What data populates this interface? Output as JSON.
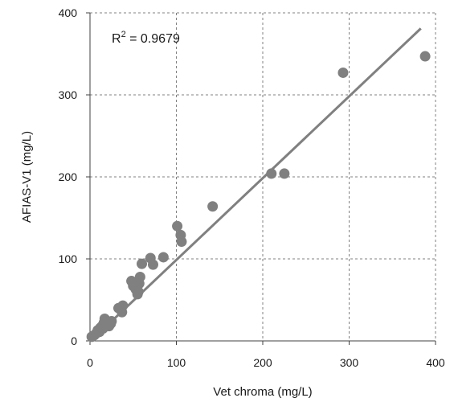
{
  "chart_data": {
    "type": "scatter",
    "title": "",
    "xlabel": "Vet chroma (mg/L)",
    "ylabel": "AFIAS-V1 (mg/L)",
    "xlim": [
      0,
      400
    ],
    "ylim": [
      0,
      400
    ],
    "xticks": [
      "0",
      "100",
      "200",
      "300",
      "400"
    ],
    "yticks": [
      "0",
      "100",
      "200",
      "300",
      "400"
    ],
    "grid": true,
    "annotation": {
      "label": "R",
      "sup": "2",
      "value": " = 0.9679"
    },
    "colors": {
      "point": "#808080",
      "line": "#808080",
      "grid": "#808080",
      "axis": "#404040"
    },
    "trendline": {
      "x": [
        3,
        383
      ],
      "y": [
        2,
        381
      ]
    },
    "series": [
      {
        "points": [
          [
            2,
            5
          ],
          [
            5,
            7
          ],
          [
            7,
            9
          ],
          [
            9,
            13
          ],
          [
            11,
            11
          ],
          [
            12,
            16
          ],
          [
            14,
            18
          ],
          [
            15,
            15
          ],
          [
            16,
            22
          ],
          [
            17,
            27
          ],
          [
            18,
            19
          ],
          [
            20,
            24
          ],
          [
            22,
            18
          ],
          [
            24,
            21
          ],
          [
            25,
            24
          ],
          [
            33,
            40
          ],
          [
            37,
            35
          ],
          [
            38,
            43
          ],
          [
            48,
            73
          ],
          [
            50,
            67
          ],
          [
            53,
            63
          ],
          [
            55,
            57
          ],
          [
            56,
            60
          ],
          [
            57,
            70
          ],
          [
            58,
            78
          ],
          [
            60,
            94
          ],
          [
            70,
            101
          ],
          [
            73,
            93
          ],
          [
            85,
            102
          ],
          [
            101,
            140
          ],
          [
            105,
            129
          ],
          [
            106,
            121
          ],
          [
            142,
            164
          ],
          [
            210,
            204
          ],
          [
            225,
            204
          ],
          [
            293,
            327
          ],
          [
            388,
            347
          ]
        ]
      }
    ]
  }
}
